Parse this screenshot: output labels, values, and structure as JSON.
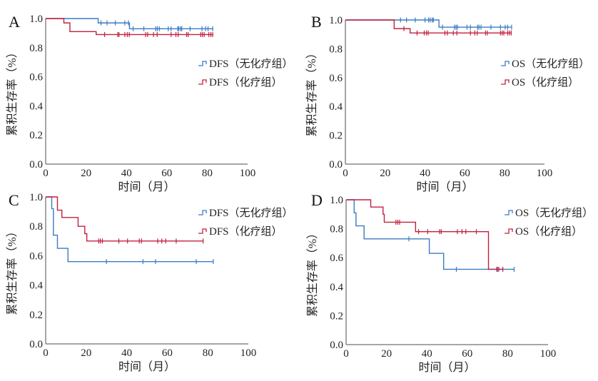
{
  "figure": {
    "xlabel": "时间（月）",
    "ylabel": "累积生存率（%）"
  },
  "colors": {
    "no_chemo": "#3a7cc4",
    "chemo": "#c2203e",
    "axis": "#888888"
  },
  "chart_data": [
    {
      "panel": "A",
      "type": "line",
      "step": true,
      "title": "",
      "xlabel": "时间（月）",
      "ylabel": "累积生存率（%）",
      "xlim": [
        0,
        100
      ],
      "ylim": [
        0,
        1.0
      ],
      "xticks": [
        "0",
        "20",
        "40",
        "60",
        "80",
        "100"
      ],
      "yticks": [
        "0.0",
        "0.2",
        "0.4",
        "0.6",
        "0.8",
        "1.0"
      ],
      "legend_position": "right-upper",
      "series": [
        {
          "name": "DFS（无化疗组）",
          "color_key": "no_chemo",
          "steps": [
            [
              0,
              1.0
            ],
            [
              26,
              0.97
            ],
            [
              41.5,
              0.93
            ]
          ],
          "end": 83,
          "censored": [
            27.4,
            30.4,
            34.5,
            39.2,
            41.0,
            43.3,
            48.6,
            54.5,
            55.3,
            56.3,
            60.7,
            62.1,
            65.4,
            65.9,
            66.8,
            67.4,
            71.5,
            77.4,
            79.2,
            80.4,
            82.7
          ]
        },
        {
          "name": "DFS（化疗组）",
          "color_key": "chemo",
          "steps": [
            [
              0,
              1.0
            ],
            [
              9,
              0.97
            ],
            [
              12,
              0.91
            ],
            [
              25,
              0.89
            ]
          ],
          "end": 83,
          "censored": [
            29.2,
            35.7,
            36.3,
            39.2,
            40.4,
            41.4,
            49.5,
            50.5,
            53.4,
            55.2,
            62.1,
            64.5,
            65.6,
            69.8,
            70.6,
            76.8,
            77.6,
            78.5,
            80.8,
            81.8,
            82.7
          ]
        }
      ]
    },
    {
      "panel": "B",
      "type": "line",
      "step": true,
      "title": "",
      "xlabel": "时间（月）",
      "ylabel": "累积生存率（%）",
      "xlim": [
        0,
        100
      ],
      "ylim": [
        0,
        1.0
      ],
      "xticks": [
        "0",
        "20",
        "40",
        "60",
        "80",
        "100"
      ],
      "yticks": [
        "0.0",
        "0.2",
        "0.4",
        "0.6",
        "0.8",
        "1.0"
      ],
      "legend_position": "right-upper",
      "series": [
        {
          "name": "OS（无化疗组）",
          "color_key": "no_chemo",
          "steps": [
            [
              0,
              1.0
            ],
            [
              47,
              0.95
            ]
          ],
          "end": 83.5,
          "censored": [
            27.7,
            30.7,
            35.1,
            40.0,
            41.8,
            42.6,
            43.6,
            44.2,
            48.8,
            54.8,
            55.6,
            56.3,
            61.1,
            62.8,
            66.4,
            67.1,
            68.1,
            73.1,
            77.9,
            80.3,
            81.5,
            83.5
          ]
        },
        {
          "name": "OS（化疗组）",
          "color_key": "chemo",
          "steps": [
            [
              0,
              1.0
            ],
            [
              24.5,
              0.94
            ],
            [
              32.5,
              0.91
            ]
          ],
          "end": 83.3,
          "censored": [
            29.4,
            36.0,
            39.6,
            40.7,
            41.6,
            50.0,
            51.2,
            54.2,
            56.0,
            62.8,
            65.0,
            66.2,
            70.4,
            71.3,
            77.9,
            78.8,
            79.6,
            81.5,
            82.4,
            83.3
          ]
        }
      ]
    },
    {
      "panel": "C",
      "type": "line",
      "step": true,
      "title": "",
      "xlabel": "时间（月）",
      "ylabel": "累积生存率（%）",
      "xlim": [
        0,
        100
      ],
      "ylim": [
        0,
        1.0
      ],
      "xticks": [
        "0",
        "20",
        "40",
        "60",
        "80",
        "100"
      ],
      "yticks": [
        "0.0",
        "0.2",
        "0.4",
        "0.6",
        "0.8",
        "1.0"
      ],
      "legend_position": "top-right",
      "series": [
        {
          "name": "DFS（无化疗组）",
          "color_key": "no_chemo",
          "steps": [
            [
              0,
              1.0
            ],
            [
              3,
              0.92
            ],
            [
              3.8,
              0.74
            ],
            [
              5.8,
              0.65
            ],
            [
              11,
              0.56
            ]
          ],
          "end": 82.7,
          "censored": [
            30,
            48,
            54.2,
            74.3,
            82.7
          ]
        },
        {
          "name": "DFS（化疗组）",
          "color_key": "chemo",
          "steps": [
            [
              0,
              1.0
            ],
            [
              5.8,
              0.91
            ],
            [
              8,
              0.86
            ],
            [
              16,
              0.8
            ],
            [
              19.3,
              0.75
            ],
            [
              20.3,
              0.7
            ]
          ],
          "end": 77.7,
          "censored": [
            26.2,
            27.0,
            28.0,
            36.1,
            40.4,
            46.2,
            47.3,
            55.3,
            57.3,
            59.2,
            64.4,
            77.7
          ]
        }
      ]
    },
    {
      "panel": "D",
      "type": "line",
      "step": true,
      "title": "",
      "xlabel": "时间（月）",
      "ylabel": "累积生存率（%）",
      "xlim": [
        0,
        100
      ],
      "ylim": [
        0,
        1.0
      ],
      "xticks": [
        "0",
        "20",
        "40",
        "60",
        "80",
        "100"
      ],
      "yticks": [
        "0.0",
        "0.2",
        "0.4",
        "0.6",
        "0.8",
        "1.0"
      ],
      "legend_position": "top-right",
      "series": [
        {
          "name": "OS（无化疗组）",
          "color_key": "no_chemo",
          "steps": [
            [
              0,
              1.0
            ],
            [
              4,
              0.91
            ],
            [
              4.9,
              0.82
            ],
            [
              8.9,
              0.73
            ],
            [
              41.2,
              0.63
            ],
            [
              48.3,
              0.52
            ]
          ],
          "end": 83.2,
          "censored": [
            31.1,
            54.6,
            75,
            83.2
          ]
        },
        {
          "name": "OS（化疗组）",
          "color_key": "chemo",
          "steps": [
            [
              0,
              1.0
            ],
            [
              12.2,
              0.95
            ],
            [
              18.3,
              0.9
            ],
            [
              18.9,
              0.845
            ],
            [
              34.4,
              0.78
            ],
            [
              70.5,
              0.52
            ]
          ],
          "end": 77.6,
          "censored": [
            24.7,
            25.6,
            26.5,
            35.9,
            40.4,
            46.3,
            47.1,
            55.1,
            57.4,
            59.3,
            64.5,
            74.6,
            75.6,
            77.6
          ]
        }
      ]
    }
  ]
}
